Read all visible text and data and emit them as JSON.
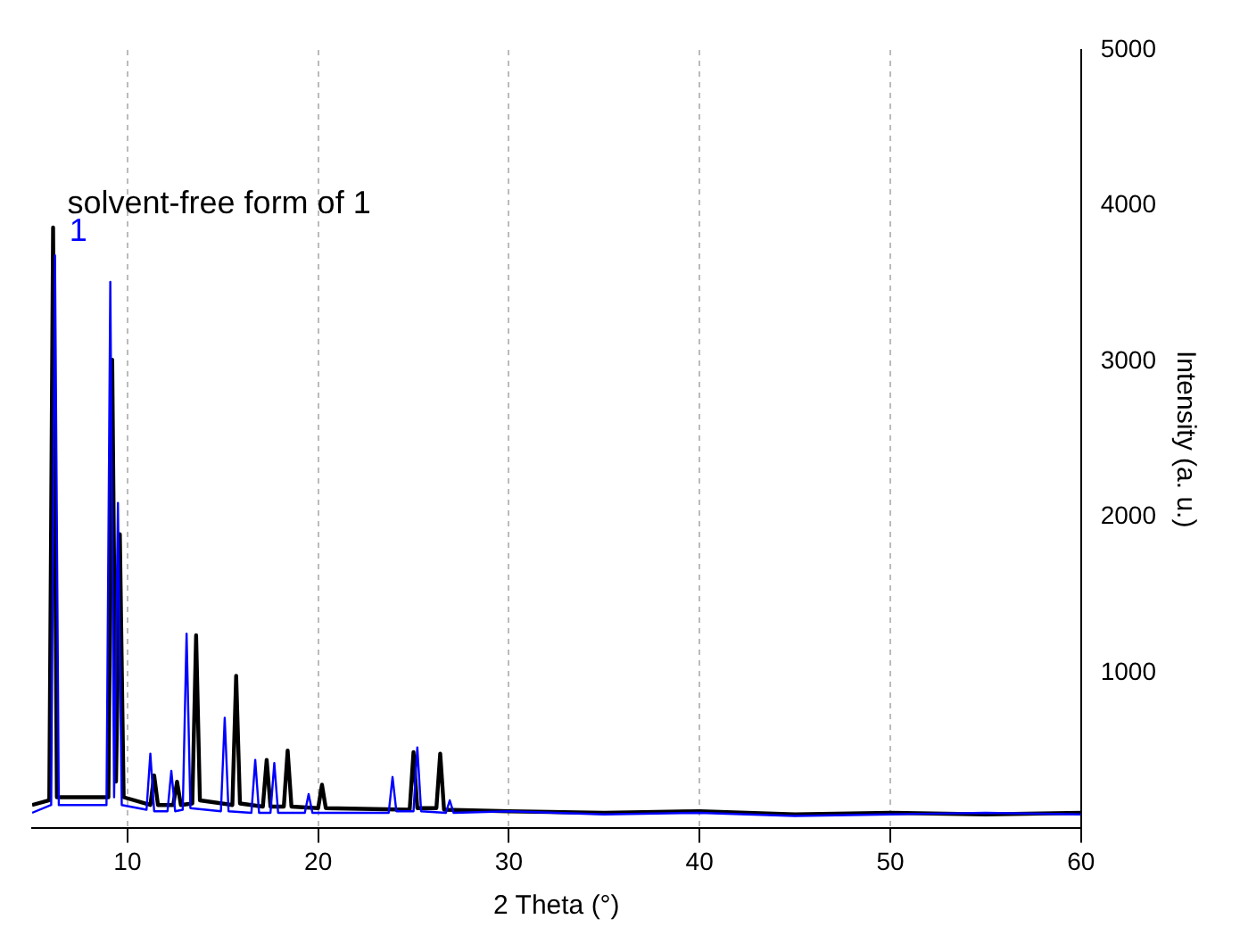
{
  "chart_data": {
    "type": "line",
    "xlabel": "2 Theta (°)",
    "ylabel": "Intensity (a. u.)",
    "xlim": [
      5,
      60
    ],
    "xticks": [
      10,
      20,
      30,
      40,
      50,
      60
    ],
    "ylim": [
      0,
      5000
    ],
    "yticks": [
      1000,
      2000,
      3000,
      4000,
      5000
    ],
    "grid": "x",
    "marker": "none",
    "line_style": "solid",
    "series": [
      {
        "name": "1",
        "color": "#0000ff",
        "x": [
          5,
          6.0,
          6.2,
          6.4,
          8.9,
          9.1,
          9.3,
          9.5,
          9.7,
          11.0,
          11.2,
          11.4,
          12.1,
          12.3,
          12.5,
          12.9,
          13.1,
          13.3,
          14.9,
          15.1,
          15.3,
          16.5,
          16.7,
          16.9,
          17.5,
          17.7,
          17.9,
          19.3,
          19.5,
          19.7,
          23.7,
          23.9,
          24.1,
          25.0,
          25.2,
          25.4,
          26.7,
          26.9,
          27.1,
          30,
          35,
          40,
          45,
          50,
          55,
          60
        ],
        "values": [
          100,
          150,
          3680,
          150,
          150,
          3510,
          200,
          2090,
          150,
          120,
          480,
          110,
          110,
          370,
          110,
          120,
          1250,
          130,
          110,
          710,
          110,
          100,
          440,
          100,
          100,
          420,
          100,
          100,
          220,
          100,
          100,
          330,
          110,
          110,
          520,
          110,
          100,
          180,
          100,
          110,
          90,
          100,
          80,
          90,
          100,
          90
        ]
      },
      {
        "name": "solvent-free form of 1",
        "color": "#000000",
        "x": [
          5,
          5.9,
          6.1,
          6.3,
          9.0,
          9.2,
          9.4,
          9.6,
          9.8,
          11.2,
          11.4,
          11.6,
          12.4,
          12.6,
          12.8,
          13.4,
          13.6,
          13.8,
          15.5,
          15.7,
          15.9,
          17.1,
          17.3,
          17.5,
          18.2,
          18.4,
          18.6,
          20.0,
          20.2,
          20.4,
          24.8,
          25.0,
          25.2,
          26.2,
          26.4,
          26.6,
          30,
          35,
          40,
          45,
          50,
          55,
          60
        ],
        "values": [
          150,
          180,
          3860,
          200,
          200,
          3010,
          300,
          1890,
          200,
          150,
          340,
          150,
          150,
          300,
          150,
          160,
          1240,
          180,
          150,
          980,
          160,
          140,
          440,
          140,
          140,
          500,
          140,
          130,
          280,
          130,
          120,
          490,
          130,
          130,
          480,
          120,
          110,
          100,
          110,
          90,
          100,
          90,
          100
        ]
      }
    ]
  }
}
